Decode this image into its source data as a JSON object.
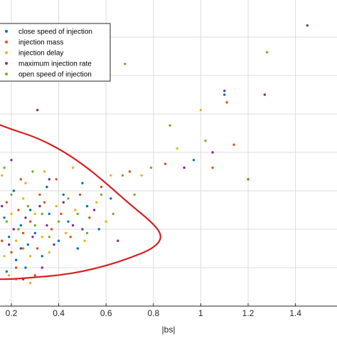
{
  "colors": {
    "background": "#ffffff",
    "grid": "#dcdcdc",
    "axis": "#262626",
    "ellipse": "#d62020"
  },
  "chart_data": {
    "type": "scatter",
    "title": "",
    "xlabel": "|bs|",
    "ylabel": "",
    "xlim": [
      0.08,
      1.5
    ],
    "ylim": [
      0,
      0.8
    ],
    "x_ticks": [
      0.2,
      0.4,
      0.6,
      0.8,
      1,
      1.2,
      1.4
    ],
    "x_tick_labels": [
      "0.2",
      "0.4",
      "0.6",
      "0.8",
      "1",
      "1.2",
      "1.4"
    ],
    "y_grid": [
      0.1,
      0.2,
      0.3,
      0.4,
      0.5,
      0.6,
      0.7
    ],
    "grid": true,
    "legend": {
      "placement": "top-left",
      "entries": [
        {
          "label": "close speed of injection",
          "color": "#0072bd"
        },
        {
          "label": "injection mass",
          "color": "#d95319"
        },
        {
          "label": "injection delay",
          "color": "#edb120"
        },
        {
          "label": "maximum injection rate",
          "color": "#7e2f8e"
        },
        {
          "label": "open speed of injection",
          "color": "#77ac30"
        }
      ]
    },
    "annotation": {
      "type": "ellipse-outline",
      "color": "#d62020",
      "points": [
        [
          0.08,
          0.488
        ],
        [
          0.2,
          0.46
        ],
        [
          0.3,
          0.44
        ],
        [
          0.4,
          0.41
        ],
        [
          0.5,
          0.37
        ],
        [
          0.6,
          0.32
        ],
        [
          0.7,
          0.265
        ],
        [
          0.8,
          0.215
        ],
        [
          0.84,
          0.18
        ],
        [
          0.8,
          0.15
        ],
        [
          0.7,
          0.125
        ],
        [
          0.6,
          0.105
        ],
        [
          0.5,
          0.09
        ],
        [
          0.4,
          0.08
        ],
        [
          0.3,
          0.075
        ],
        [
          0.2,
          0.07
        ],
        [
          0.08,
          0.07
        ]
      ]
    },
    "series": [
      {
        "name": "close speed of injection",
        "color": "#0072bd",
        "points": [
          [
            0.1,
            0.16
          ],
          [
            0.12,
            0.2
          ],
          [
            0.15,
            0.14
          ],
          [
            0.17,
            0.23
          ],
          [
            0.19,
            0.18
          ],
          [
            0.22,
            0.12
          ],
          [
            0.24,
            0.21
          ],
          [
            0.27,
            0.16
          ],
          [
            0.3,
            0.19
          ],
          [
            0.33,
            0.13
          ],
          [
            0.36,
            0.24
          ],
          [
            0.4,
            0.17
          ],
          [
            0.44,
            0.22
          ],
          [
            0.48,
            0.15
          ],
          [
            0.52,
            0.26
          ],
          [
            0.57,
            0.2
          ],
          [
            0.62,
            0.28
          ],
          [
            0.14,
            0.27
          ],
          [
            0.21,
            0.3
          ],
          [
            0.28,
            0.25
          ],
          [
            0.35,
            0.31
          ],
          [
            0.42,
            0.29
          ],
          [
            0.11,
            0.11
          ],
          [
            0.18,
            0.09
          ],
          [
            0.26,
            0.1
          ],
          [
            0.5,
            0.32
          ],
          [
            0.97,
            0.38
          ],
          [
            1.1,
            0.55
          ]
        ]
      },
      {
        "name": "injection mass",
        "color": "#d95319",
        "points": [
          [
            0.11,
            0.19
          ],
          [
            0.13,
            0.24
          ],
          [
            0.16,
            0.17
          ],
          [
            0.18,
            0.27
          ],
          [
            0.2,
            0.14
          ],
          [
            0.23,
            0.25
          ],
          [
            0.25,
            0.19
          ],
          [
            0.28,
            0.22
          ],
          [
            0.31,
            0.15
          ],
          [
            0.34,
            0.27
          ],
          [
            0.37,
            0.2
          ],
          [
            0.41,
            0.24
          ],
          [
            0.45,
            0.18
          ],
          [
            0.49,
            0.29
          ],
          [
            0.53,
            0.23
          ],
          [
            0.58,
            0.31
          ],
          [
            0.15,
            0.31
          ],
          [
            0.24,
            0.33
          ],
          [
            0.32,
            0.29
          ],
          [
            0.39,
            0.33
          ],
          [
            0.22,
            0.1
          ],
          [
            0.3,
            0.08
          ],
          [
            0.7,
            0.35
          ],
          [
            0.85,
            0.37
          ],
          [
            1.11,
            0.53
          ],
          [
            1.14,
            0.42
          ],
          [
            1.2,
            0.33
          ],
          [
            1.05,
            0.36
          ]
        ]
      },
      {
        "name": "injection delay",
        "color": "#edb120",
        "points": [
          [
            0.1,
            0.22
          ],
          [
            0.13,
            0.15
          ],
          [
            0.15,
            0.21
          ],
          [
            0.17,
            0.13
          ],
          [
            0.2,
            0.24
          ],
          [
            0.22,
            0.17
          ],
          [
            0.25,
            0.28
          ],
          [
            0.28,
            0.13
          ],
          [
            0.3,
            0.24
          ],
          [
            0.33,
            0.18
          ],
          [
            0.36,
            0.14
          ],
          [
            0.39,
            0.26
          ],
          [
            0.43,
            0.19
          ],
          [
            0.47,
            0.25
          ],
          [
            0.51,
            0.17
          ],
          [
            0.56,
            0.27
          ],
          [
            0.6,
            0.22
          ],
          [
            0.16,
            0.34
          ],
          [
            0.26,
            0.32
          ],
          [
            0.34,
            0.35
          ],
          [
            0.46,
            0.36
          ],
          [
            0.19,
            0.08
          ],
          [
            0.28,
            0.06
          ],
          [
            0.75,
            0.34
          ],
          [
            0.9,
            0.41
          ],
          [
            1.0,
            0.51
          ],
          [
            0.62,
            0.34
          ]
        ]
      },
      {
        "name": "maximum injection rate",
        "color": "#7e2f8e",
        "points": [
          [
            0.12,
            0.17
          ],
          [
            0.14,
            0.22
          ],
          [
            0.16,
            0.26
          ],
          [
            0.19,
            0.16
          ],
          [
            0.21,
            0.2
          ],
          [
            0.24,
            0.15
          ],
          [
            0.26,
            0.23
          ],
          [
            0.29,
            0.18
          ],
          [
            0.32,
            0.26
          ],
          [
            0.35,
            0.21
          ],
          [
            0.38,
            0.16
          ],
          [
            0.42,
            0.27
          ],
          [
            0.46,
            0.21
          ],
          [
            0.5,
            0.2
          ],
          [
            0.55,
            0.25
          ],
          [
            0.2,
            0.38
          ],
          [
            0.31,
            0.51
          ],
          [
            0.36,
            0.33
          ],
          [
            0.25,
            0.07
          ],
          [
            0.33,
            0.1
          ],
          [
            1.45,
            0.73
          ],
          [
            1.27,
            0.55
          ],
          [
            1.1,
            0.56
          ],
          [
            0.93,
            0.36
          ],
          [
            1.05,
            0.4
          ],
          [
            0.65,
            0.17
          ]
        ]
      },
      {
        "name": "open speed of injection",
        "color": "#77ac30",
        "points": [
          [
            0.11,
            0.24
          ],
          [
            0.13,
            0.13
          ],
          [
            0.15,
            0.19
          ],
          [
            0.18,
            0.22
          ],
          [
            0.2,
            0.29
          ],
          [
            0.23,
            0.2
          ],
          [
            0.25,
            0.15
          ],
          [
            0.27,
            0.26
          ],
          [
            0.3,
            0.21
          ],
          [
            0.33,
            0.24
          ],
          [
            0.36,
            0.18
          ],
          [
            0.4,
            0.22
          ],
          [
            0.44,
            0.28
          ],
          [
            0.48,
            0.24
          ],
          [
            0.52,
            0.19
          ],
          [
            0.58,
            0.29
          ],
          [
            0.63,
            0.24
          ],
          [
            0.67,
            0.34
          ],
          [
            0.17,
            0.36
          ],
          [
            0.29,
            0.35
          ],
          [
            0.14,
            0.09
          ],
          [
            0.22,
            0.07
          ],
          [
            0.68,
            0.63
          ],
          [
            0.87,
            0.47
          ],
          [
            1.02,
            0.43
          ],
          [
            1.28,
            0.66
          ],
          [
            0.79,
            0.36
          ],
          [
            0.72,
            0.29
          ]
        ]
      }
    ]
  }
}
